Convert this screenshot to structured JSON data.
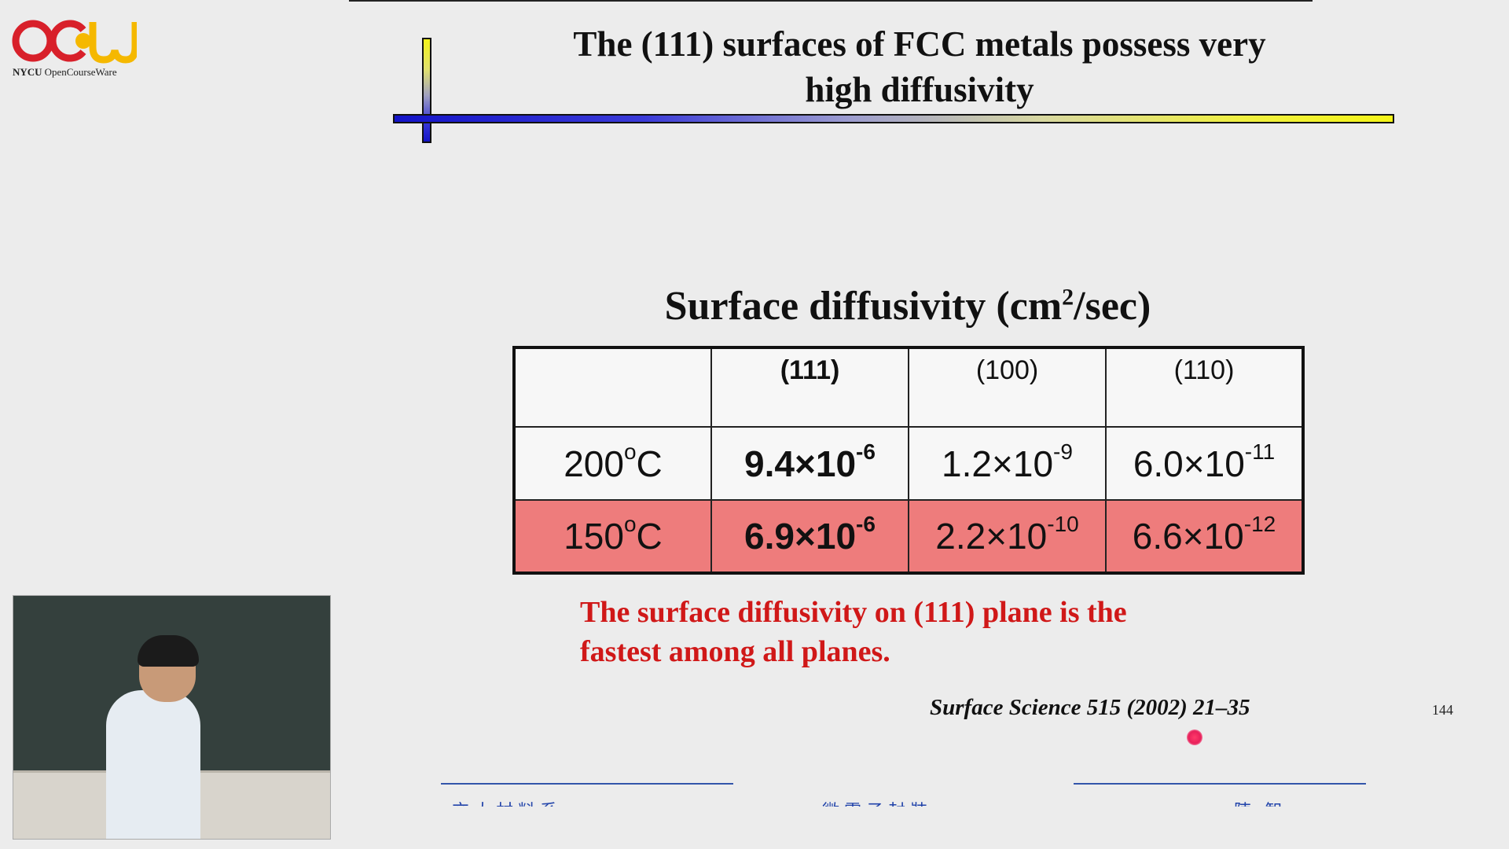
{
  "logo": {
    "brand": "OCW",
    "caption_bold": "NYCU",
    "caption": "OpenCourseWare",
    "colors": {
      "red": "#d8202a",
      "yellow": "#f5b800"
    }
  },
  "slide": {
    "title_line1": "The (111) surfaces of FCC metals possess very",
    "title_line2": "high diffusivity",
    "table_heading_main": "Surface diffusivity (cm",
    "table_heading_sup": "2",
    "table_heading_tail": "/sec)",
    "table": {
      "headers": [
        "",
        "(111)",
        "(100)",
        "(110)"
      ],
      "rows": [
        {
          "temp": "200",
          "temp_sup": "o",
          "temp_unit": "C",
          "cells": [
            {
              "mantissa": "9.4×10",
              "exponent": "-6"
            },
            {
              "mantissa": "1.2×10",
              "exponent": "-9"
            },
            {
              "mantissa": "6.0×10",
              "exponent": "-11"
            }
          ]
        },
        {
          "temp": "150",
          "temp_sup": "o",
          "temp_unit": "C",
          "cells": [
            {
              "mantissa": "6.9×10",
              "exponent": "-6"
            },
            {
              "mantissa": "2.2×10",
              "exponent": "-10"
            },
            {
              "mantissa": "6.6×10",
              "exponent": "-12"
            }
          ]
        }
      ],
      "highlight_color": "#ee7c7c"
    },
    "conclusion_line1": "The surface diffusivity  on (111) plane is the",
    "conclusion_line2": "fastest among all planes.",
    "citation": "Surface Science 515 (2002) 21–35",
    "page_number": "144"
  },
  "footer": {
    "left": "交大材料系",
    "center": "微電子封裝",
    "right": "陳 智"
  },
  "webcam": {
    "icon": "lecturer-video-icon"
  }
}
